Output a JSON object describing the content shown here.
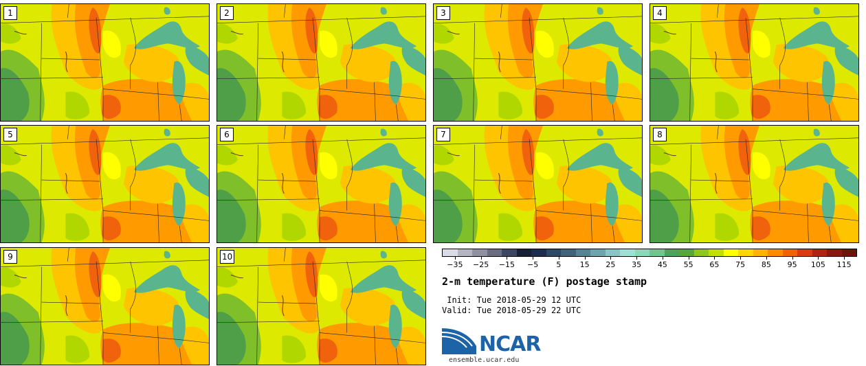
{
  "members": [
    {
      "label": "1"
    },
    {
      "label": "2"
    },
    {
      "label": "3"
    },
    {
      "label": "4"
    },
    {
      "label": "5"
    },
    {
      "label": "6"
    },
    {
      "label": "7"
    },
    {
      "label": "8"
    },
    {
      "label": "9"
    },
    {
      "label": "10"
    }
  ],
  "legend": {
    "ticks": [
      "−35",
      "−25",
      "−15",
      "−5",
      "5",
      "15",
      "25",
      "35",
      "45",
      "55",
      "65",
      "75",
      "85",
      "95",
      "105",
      "115"
    ],
    "tick_values": [
      -35,
      -25,
      -15,
      -5,
      5,
      15,
      25,
      35,
      45,
      55,
      65,
      75,
      85,
      95,
      105,
      115
    ],
    "range": [
      -40,
      120
    ],
    "colors": [
      "#dcdce6",
      "#b4b4c3",
      "#8f90a2",
      "#6a6c80",
      "#3c4663",
      "#182038",
      "#1c2d4f",
      "#2c4a65",
      "#3f6378",
      "#568393",
      "#6ea4ad",
      "#8ac4c4",
      "#a0e1d6",
      "#8ad8b8",
      "#6fc68f",
      "#4da35c",
      "#56a83c",
      "#8ec71d",
      "#c2e000",
      "#ffff00",
      "#ffd700",
      "#ffb200",
      "#ff8a00",
      "#f26200",
      "#d93a10",
      "#b02312",
      "#8a1710",
      "#6a1508"
    ]
  },
  "title": "2-m temperature (F) postage stamp",
  "init": " Init: Tue 2018-05-29 12 UTC",
  "valid": "Valid: Tue 2018-05-29 22 UTC",
  "logo": {
    "text": "NCAR",
    "site": "ensemble.ucar.edu"
  },
  "map_colors": {
    "warm_dark": "#f0620c",
    "warm": "#ff9a00",
    "amber": "#ffc400",
    "yellow": "#ffff00",
    "lime": "#d8ec00",
    "lightgreen": "#b0d800",
    "green": "#7fbf2a",
    "darkgreen": "#4f9e48",
    "lake": "#5ab58e",
    "lake_dark": "#3a8f5d"
  }
}
